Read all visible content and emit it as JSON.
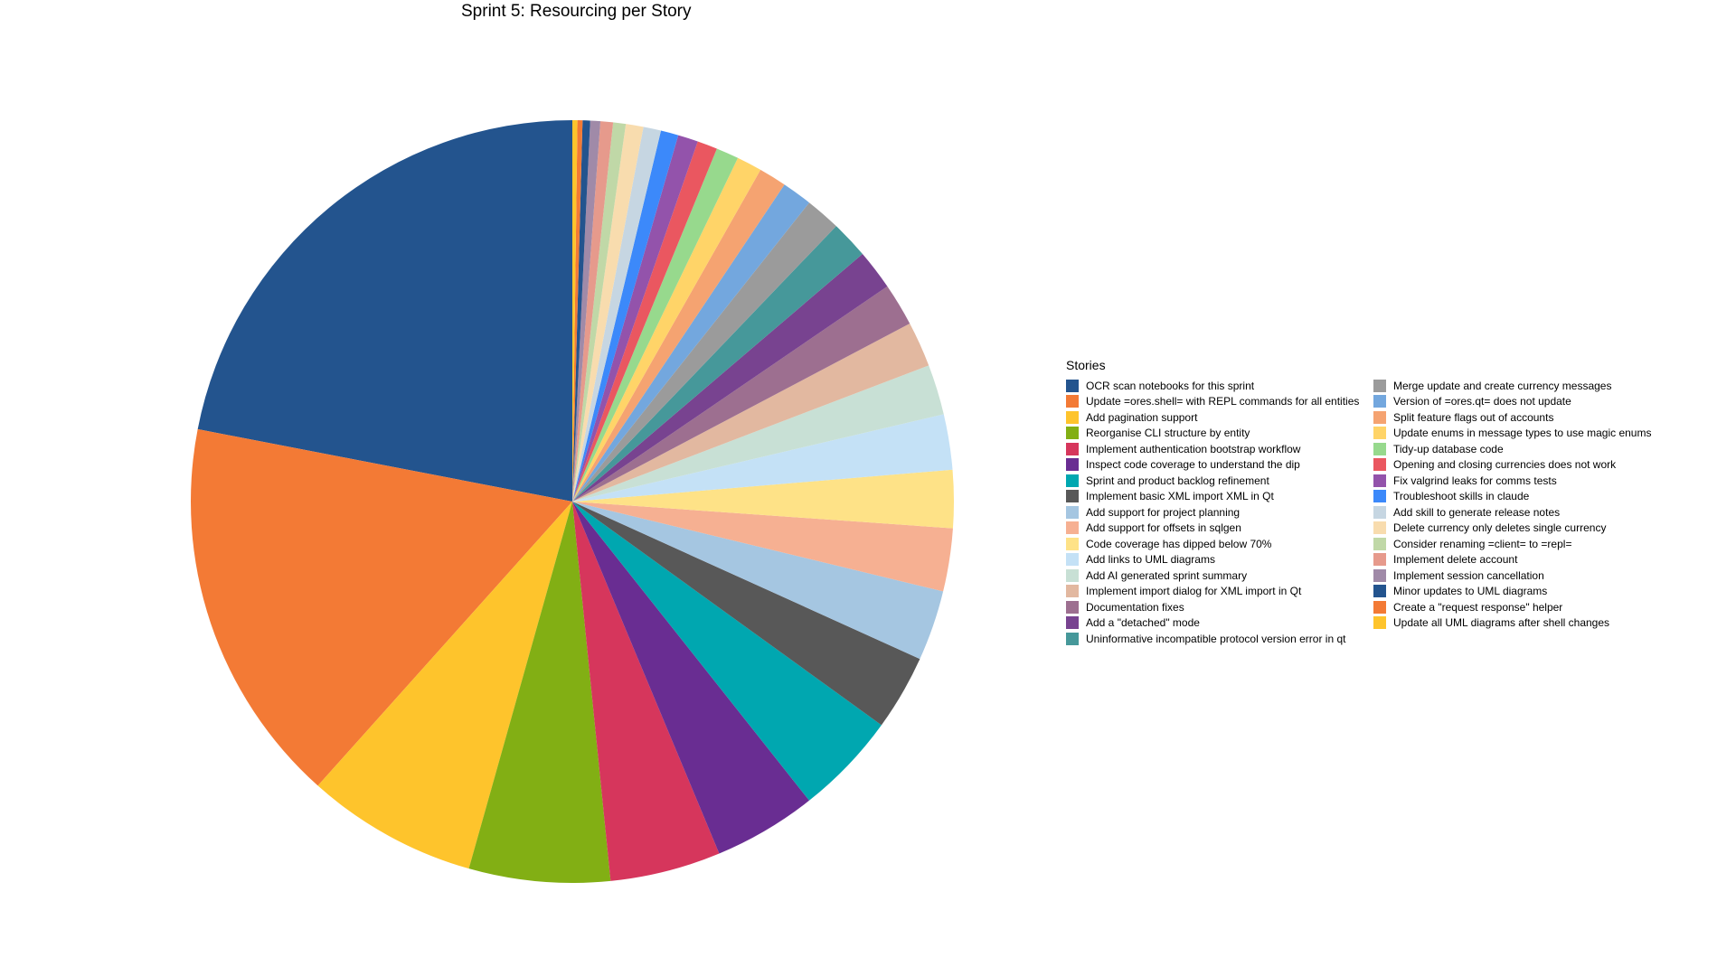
{
  "chart_data": {
    "type": "pie",
    "title": "Sprint 5: Resourcing per Story",
    "legend_title": "Stories",
    "legend_placement": "right",
    "start_angle": "12 o'clock",
    "direction": "counter-clockwise",
    "slices": [
      {
        "label": "OCR scan notebooks for this sprint",
        "value": 20.6,
        "color": "#23548E"
      },
      {
        "label": "Update =ores.shell= with REPL commands for all entities",
        "value": 15.4,
        "color": "#F37A35"
      },
      {
        "label": "Add pagination support",
        "value": 6.8,
        "color": "#FEC42C"
      },
      {
        "label": "Reorganise CLI structure by entity",
        "value": 5.6,
        "color": "#82AF14"
      },
      {
        "label": "Implement authentication bootstrap workflow",
        "value": 4.4,
        "color": "#D6365C"
      },
      {
        "label": "Inspect code coverage to understand the dip",
        "value": 4.1,
        "color": "#692D92"
      },
      {
        "label": "Sprint and product backlog refinement",
        "value": 4.1,
        "color": "#00A7B0"
      },
      {
        "label": "Implement basic XML import XML in Qt",
        "value": 3.0,
        "color": "#585858"
      },
      {
        "label": "Add support for project planning",
        "value": 2.8,
        "color": "#A5C6E1"
      },
      {
        "label": "Add support for offsets in sqlgen",
        "value": 2.5,
        "color": "#F6B092"
      },
      {
        "label": "Code coverage has dipped below 70%",
        "value": 2.3,
        "color": "#FEE287"
      },
      {
        "label": "Add links to UML diagrams",
        "value": 2.2,
        "color": "#C4E1F6"
      },
      {
        "label": "Add AI generated sprint summary",
        "value": 2.0,
        "color": "#C8E0D5"
      },
      {
        "label": "Implement import dialog for XML import in Qt",
        "value": 1.8,
        "color": "#E2B8A0"
      },
      {
        "label": "Documentation fixes",
        "value": 1.7,
        "color": "#9D6F90"
      },
      {
        "label": "Add a \"detached\" mode",
        "value": 1.6,
        "color": "#784390"
      },
      {
        "label": "Uninformative incompatible protocol version error in qt",
        "value": 1.5,
        "color": "#46989A"
      },
      {
        "label": "Merge update and create currency messages",
        "value": 1.4,
        "color": "#9B9B9B"
      },
      {
        "label": "Version of =ores.qt= does not update",
        "value": 1.2,
        "color": "#73A7DE"
      },
      {
        "label": "Split feature flags out of accounts",
        "value": 1.1,
        "color": "#F5A371"
      },
      {
        "label": "Update enums in message types to use magic enums",
        "value": 1.0,
        "color": "#FFD468"
      },
      {
        "label": "Tidy-up database code",
        "value": 0.9,
        "color": "#97D98D"
      },
      {
        "label": "Opening and closing currencies does not work",
        "value": 0.8,
        "color": "#EA5760"
      },
      {
        "label": "Fix valgrind leaks for comms tests",
        "value": 0.8,
        "color": "#9353AB"
      },
      {
        "label": "Troubleshoot skills in claude",
        "value": 0.7,
        "color": "#3C89FA"
      },
      {
        "label": "Add skill to generate release notes",
        "value": 0.7,
        "color": "#C6D6E2"
      },
      {
        "label": "Delete currency only deletes single currency",
        "value": 0.7,
        "color": "#F8DCAE"
      },
      {
        "label": "Consider renaming =client= to =repl=",
        "value": 0.5,
        "color": "#C0D8A7"
      },
      {
        "label": "Implement delete account",
        "value": 0.5,
        "color": "#E69A8C"
      },
      {
        "label": "Implement session cancellation",
        "value": 0.4,
        "color": "#A08AA8"
      },
      {
        "label": "Minor updates to UML diagrams",
        "value": 0.3,
        "color": "#23548E"
      },
      {
        "label": "Create a \"request response\" helper",
        "value": 0.2,
        "color": "#F37A35"
      },
      {
        "label": "Update all UML diagrams after shell changes",
        "value": 0.2,
        "color": "#FEC42C"
      }
    ]
  }
}
